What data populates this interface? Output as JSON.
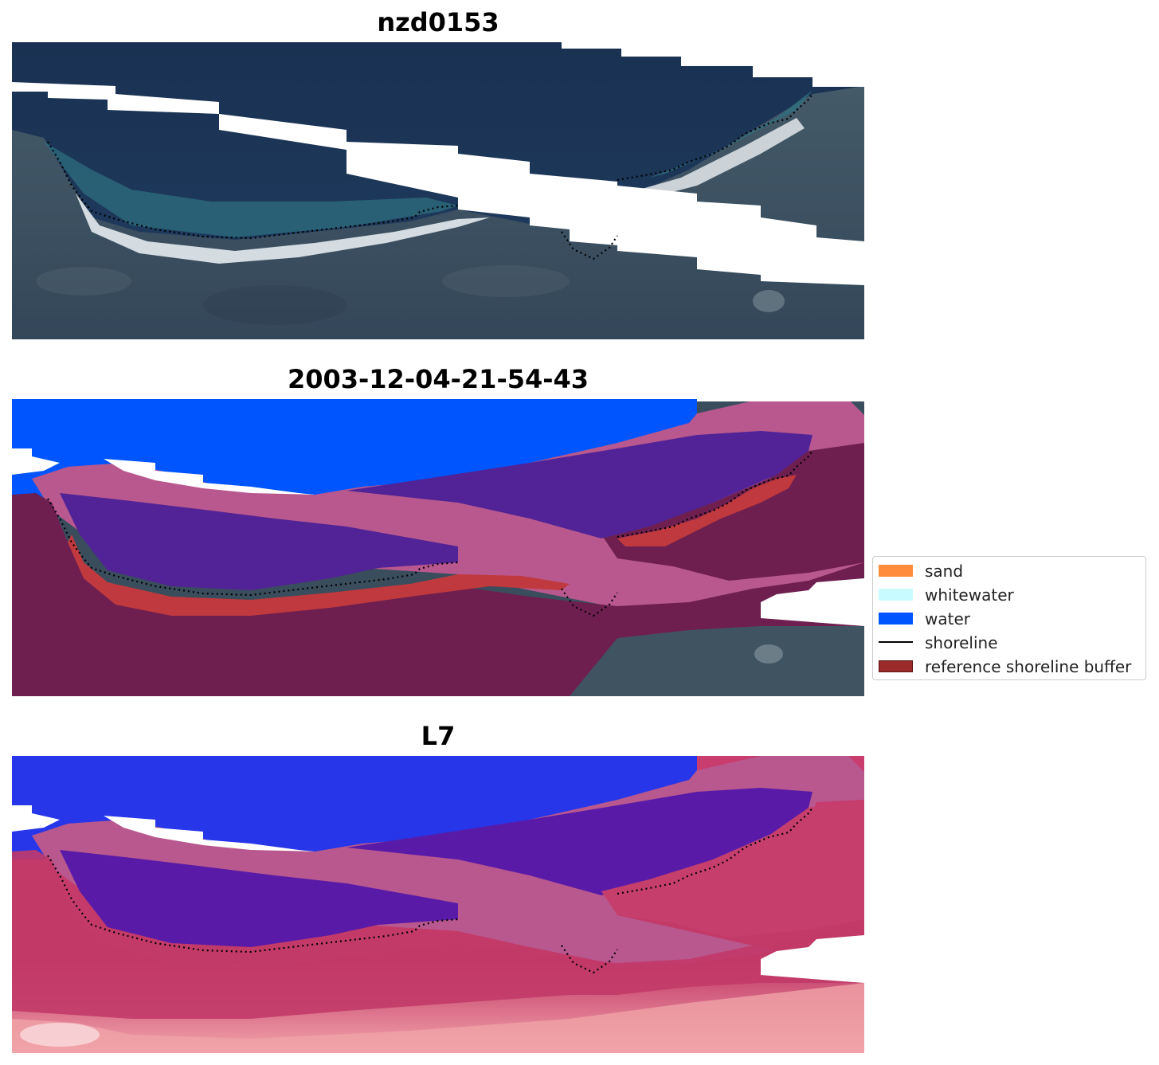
{
  "panels": [
    {
      "title": "nzd0153"
    },
    {
      "title": "2003-12-04-21-54-43"
    },
    {
      "title": "L7"
    }
  ],
  "legend": {
    "items": [
      {
        "label": "sand",
        "color": "#ff8c3a",
        "kind": "patch"
      },
      {
        "label": "whitewater",
        "color": "#c8fbff",
        "kind": "patch"
      },
      {
        "label": "water",
        "color": "#0055ff",
        "kind": "patch"
      },
      {
        "label": "shoreline",
        "color": "#000000",
        "kind": "line"
      },
      {
        "label": "reference shoreline buffer",
        "color": "#9b2a2a",
        "kind": "patch"
      }
    ]
  },
  "colors": {
    "sea_dark": "#1b3557",
    "land": "#3c5060",
    "beach": "#e8ecef",
    "water_class": "#0055ff",
    "buffer_overlay": "#b8588e",
    "buffer_land": "#6e1f4f",
    "sand_class": "#c0393e",
    "ndwi_water": "#1f2fe6",
    "ndwi_land": "#c23a6a",
    "ndwi_bright": "#f4a0a6"
  }
}
